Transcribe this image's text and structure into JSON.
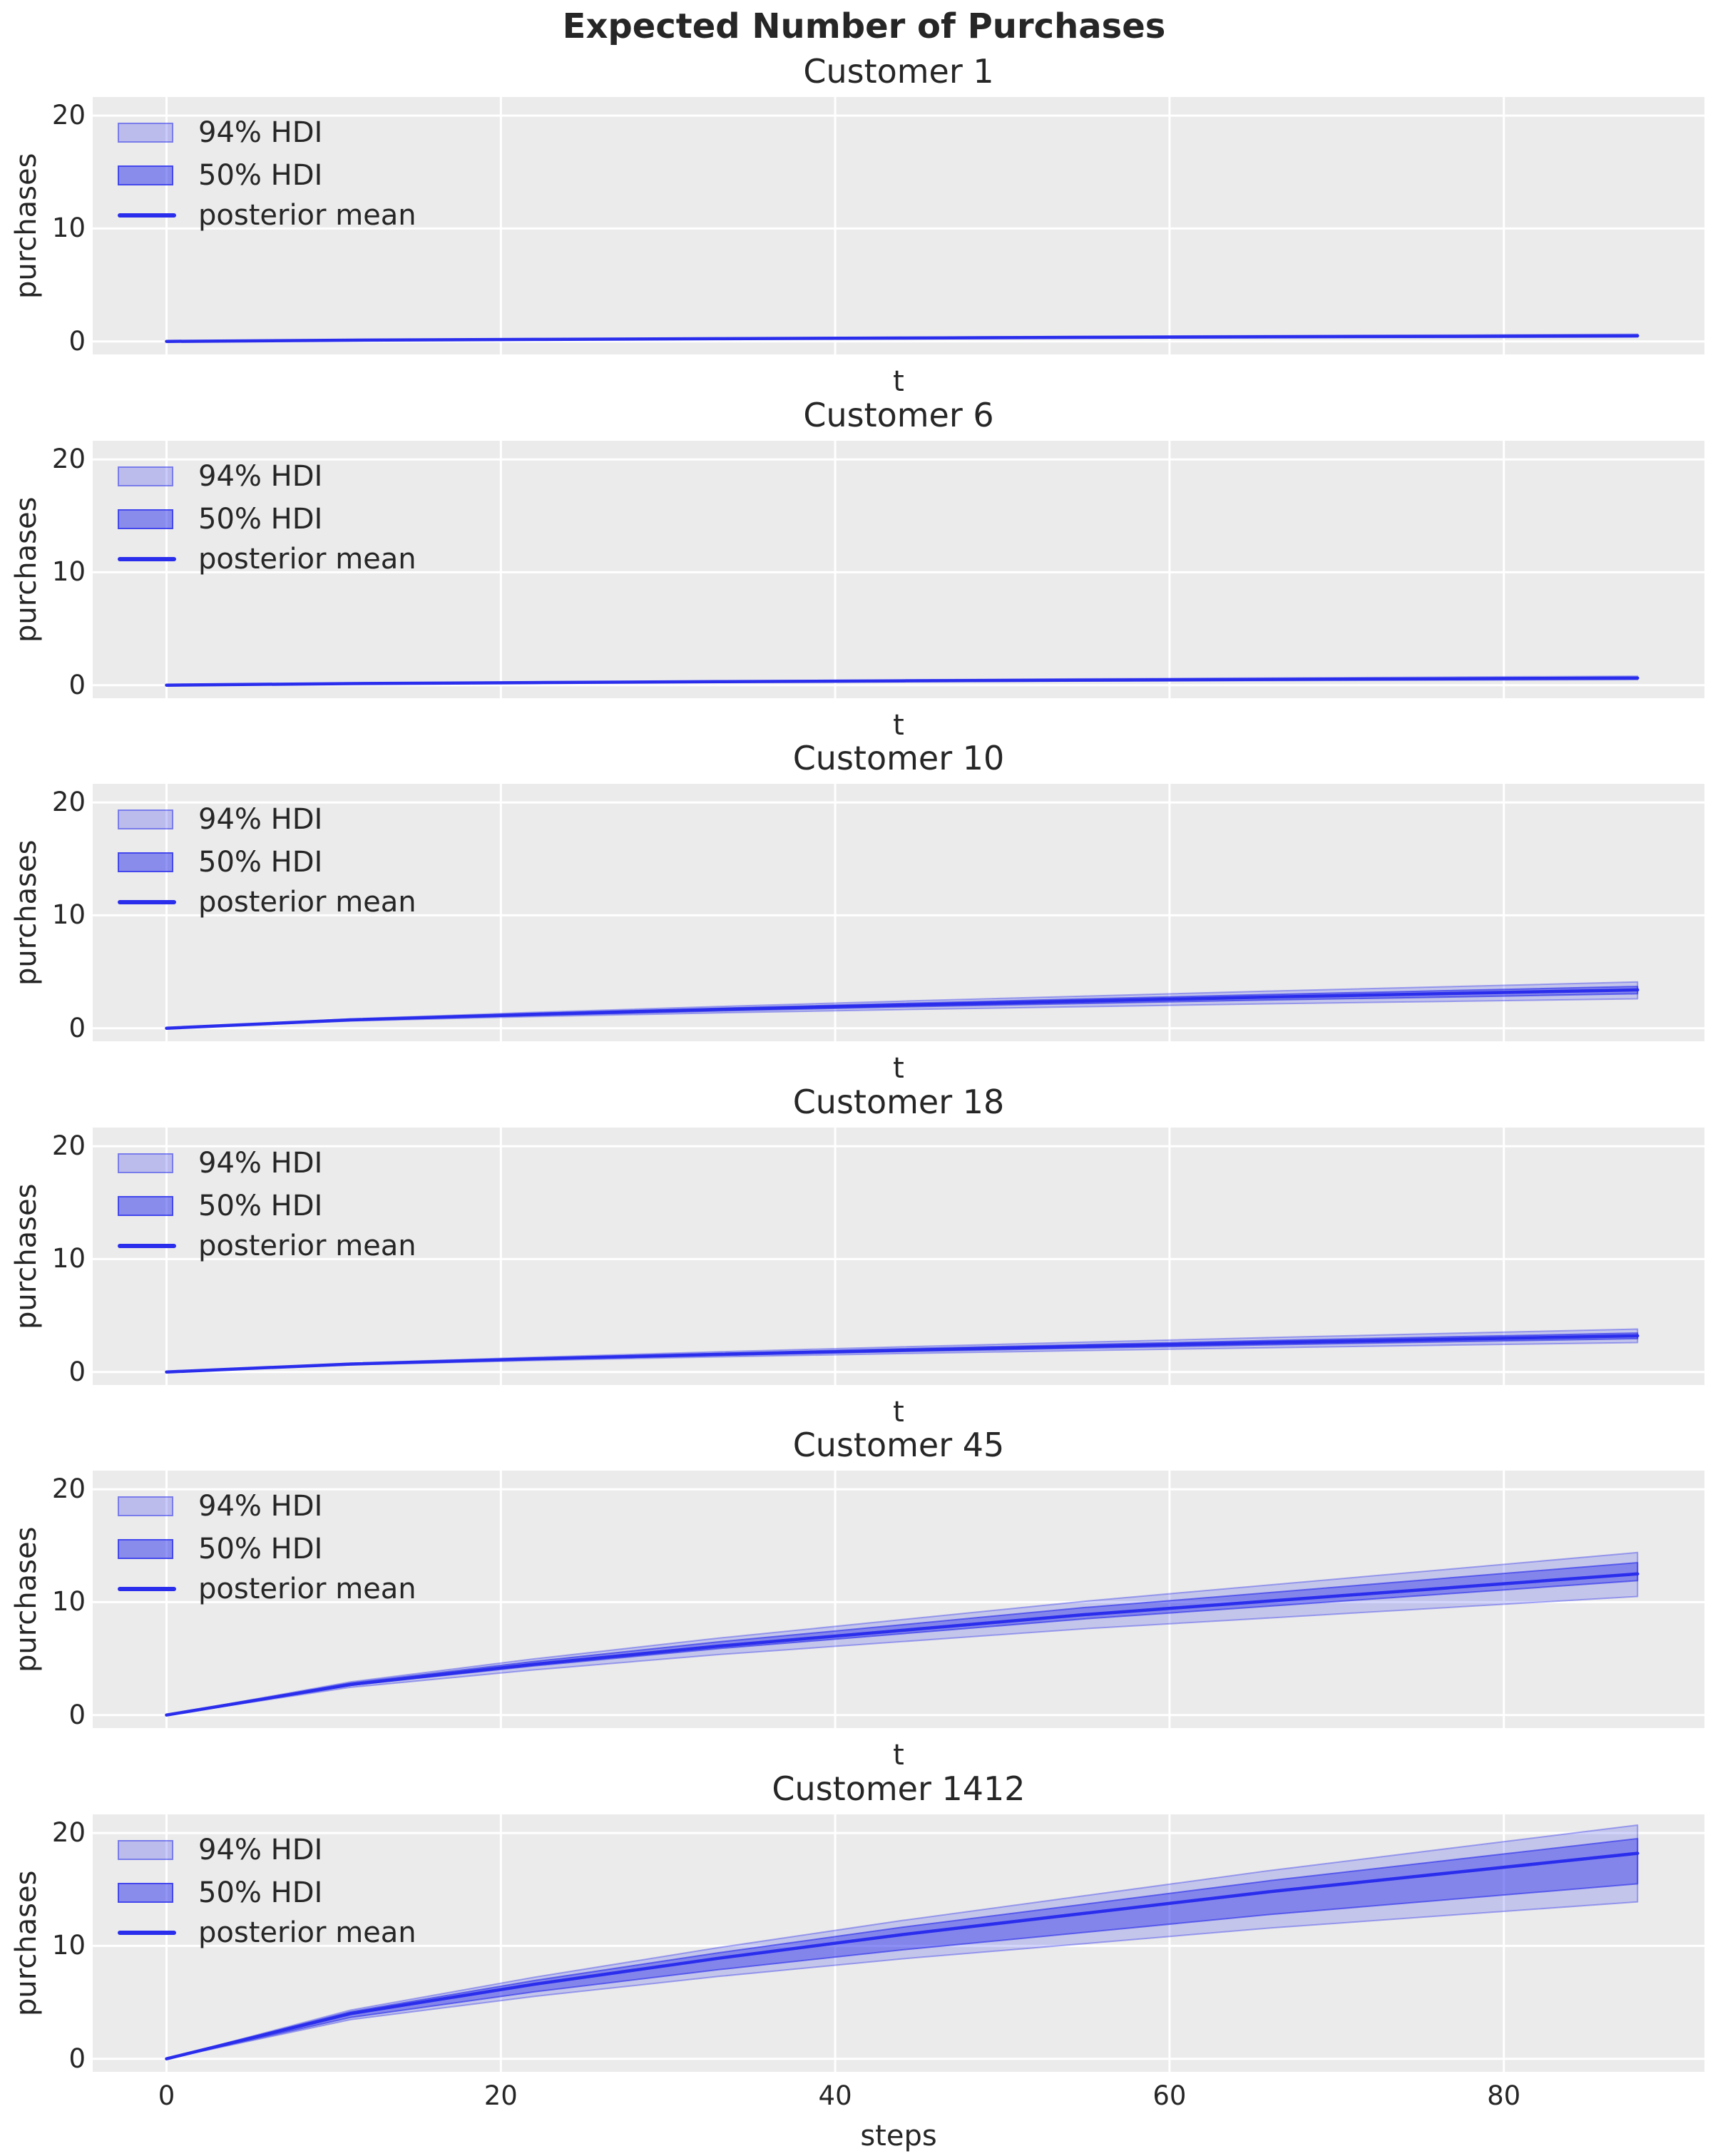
{
  "figure": {
    "background": "#ffffff",
    "panel_background": "#ebebeb",
    "grid_color": "#ffffff",
    "text_color": "#262626",
    "accent_blue": "#2a2eec"
  },
  "chart_data": {
    "type": "line",
    "title": "Expected Number of Purchases",
    "ylabel": "purchases",
    "legend": [
      "94% HDI",
      "50% HDI",
      "posterior mean"
    ],
    "yticks": [
      0,
      10,
      20
    ],
    "xticks": [
      0,
      20,
      40,
      60,
      80
    ],
    "xlim": [
      -4.6,
      92.6
    ],
    "ylim": [
      -1.15,
      21.65
    ],
    "grid": true,
    "x": [
      0,
      11,
      22,
      33,
      44,
      55,
      66,
      77,
      88
    ],
    "subplots": [
      {
        "title": "Customer 1",
        "xlabel": "t",
        "show_xticks": false,
        "mean": [
          0,
          0.11,
          0.18,
          0.24,
          0.3,
          0.36,
          0.41,
          0.45,
          0.5
        ],
        "hdi94_lower": [
          0,
          0.09,
          0.15,
          0.2,
          0.24,
          0.29,
          0.32,
          0.35,
          0.38
        ],
        "hdi94_upper": [
          0,
          0.13,
          0.22,
          0.29,
          0.37,
          0.45,
          0.52,
          0.57,
          0.64
        ],
        "hdi50_lower": [
          0,
          0.1,
          0.17,
          0.22,
          0.28,
          0.33,
          0.37,
          0.41,
          0.45
        ],
        "hdi50_upper": [
          0,
          0.12,
          0.2,
          0.26,
          0.33,
          0.4,
          0.46,
          0.5,
          0.56
        ]
      },
      {
        "title": "Customer 6",
        "xlabel": "t",
        "show_xticks": false,
        "mean": [
          0,
          0.14,
          0.23,
          0.31,
          0.38,
          0.45,
          0.51,
          0.57,
          0.63
        ],
        "hdi94_lower": [
          0,
          0.12,
          0.19,
          0.25,
          0.31,
          0.36,
          0.4,
          0.44,
          0.48
        ],
        "hdi94_upper": [
          0,
          0.16,
          0.27,
          0.37,
          0.47,
          0.56,
          0.64,
          0.72,
          0.8
        ],
        "hdi50_lower": [
          0,
          0.13,
          0.21,
          0.29,
          0.35,
          0.41,
          0.47,
          0.52,
          0.57
        ],
        "hdi50_upper": [
          0,
          0.15,
          0.25,
          0.34,
          0.42,
          0.49,
          0.56,
          0.63,
          0.7
        ]
      },
      {
        "title": "Customer 10",
        "xlabel": "t",
        "show_xticks": false,
        "mean": [
          0,
          0.74,
          1.23,
          1.66,
          2.05,
          2.41,
          2.76,
          3.08,
          3.4
        ],
        "hdi94_lower": [
          0,
          0.64,
          1.03,
          1.36,
          1.65,
          1.91,
          2.16,
          2.38,
          2.6
        ],
        "hdi94_upper": [
          0,
          0.83,
          1.41,
          1.92,
          2.4,
          2.85,
          3.29,
          3.69,
          4.1
        ],
        "hdi50_lower": [
          0,
          0.7,
          1.14,
          1.53,
          1.88,
          2.19,
          2.5,
          2.77,
          3.05
        ],
        "hdi50_upper": [
          0,
          0.78,
          1.31,
          1.77,
          2.2,
          2.6,
          2.99,
          3.34,
          3.7
        ]
      },
      {
        "title": "Customer 18",
        "xlabel": "t",
        "show_xticks": false,
        "mean": [
          0,
          0.7,
          1.16,
          1.56,
          1.93,
          2.27,
          2.6,
          2.9,
          3.2
        ],
        "hdi94_lower": [
          0,
          0.63,
          1.01,
          1.34,
          1.63,
          1.9,
          2.15,
          2.38,
          2.6
        ],
        "hdi94_upper": [
          0,
          0.78,
          1.31,
          1.79,
          2.23,
          2.65,
          3.05,
          3.43,
          3.8
        ],
        "hdi50_lower": [
          0,
          0.67,
          1.1,
          1.47,
          1.81,
          2.11,
          2.41,
          2.68,
          2.95
        ],
        "hdi50_upper": [
          0,
          0.73,
          1.22,
          1.65,
          2.06,
          2.43,
          2.79,
          3.12,
          3.45
        ]
      },
      {
        "title": "Customer 45",
        "xlabel": "t",
        "show_xticks": false,
        "mean": [
          0,
          2.7,
          4.5,
          6.1,
          7.5,
          8.9,
          10.1,
          11.3,
          12.5
        ],
        "hdi94_lower": [
          0,
          2.45,
          4.0,
          5.35,
          6.5,
          7.65,
          8.6,
          9.55,
          10.5
        ],
        "hdi94_upper": [
          0,
          2.94,
          4.98,
          6.81,
          8.45,
          10.09,
          11.53,
          12.96,
          14.4
        ],
        "hdi50_lower": [
          0,
          2.63,
          4.35,
          5.88,
          7.2,
          8.53,
          9.65,
          10.78,
          11.9
        ],
        "hdi50_upper": [
          0,
          2.83,
          4.75,
          6.48,
          8.0,
          9.53,
          10.85,
          12.18,
          13.5
        ]
      },
      {
        "title": "Customer 1412",
        "xlabel": "steps",
        "show_xticks": true,
        "mean": [
          0,
          4.0,
          6.6,
          8.9,
          11.0,
          12.9,
          14.8,
          16.5,
          18.2
        ],
        "hdi94_lower": [
          0,
          3.46,
          5.53,
          7.29,
          8.85,
          10.21,
          11.58,
          12.74,
          13.9
        ],
        "hdi94_upper": [
          0,
          4.31,
          7.23,
          9.84,
          12.25,
          14.46,
          16.68,
          18.69,
          20.7
        ],
        "hdi50_lower": [
          0,
          3.66,
          5.93,
          7.89,
          9.65,
          11.21,
          12.78,
          14.14,
          15.5
        ],
        "hdi50_upper": [
          0,
          4.16,
          6.93,
          9.39,
          11.65,
          13.71,
          15.78,
          17.64,
          19.5
        ]
      }
    ]
  }
}
